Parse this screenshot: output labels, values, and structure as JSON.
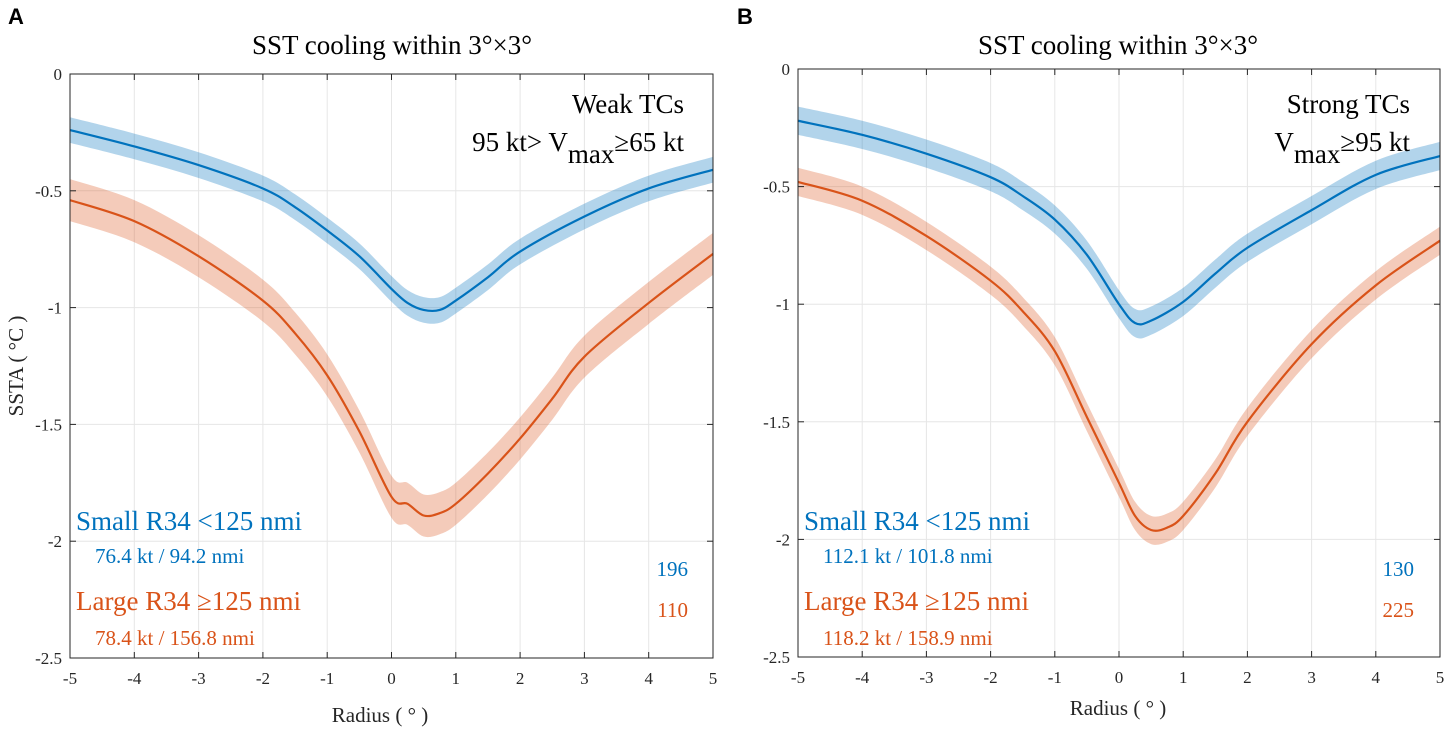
{
  "chart_data": [
    {
      "type": "line",
      "panel_label": "A",
      "title": "SST cooling within 3°×3°",
      "xlabel": "Radius ( ° )",
      "ylabel": "SSTA ( °C )",
      "xlim": [
        -5,
        5
      ],
      "ylim": [
        -2.5,
        0
      ],
      "xticks": [
        "-5",
        "-4",
        "-3",
        "-2",
        "-1",
        "0",
        "1",
        "2",
        "3",
        "4",
        "5"
      ],
      "yticks": [
        "0",
        "-0.5",
        "-1",
        "-1.5",
        "-2",
        "-2.5"
      ],
      "grid": true,
      "annotation_title": "Weak TCs",
      "annotation_cond_prefix": "95 kt> V",
      "annotation_cond_sub": "max",
      "annotation_cond_suffix": "≥65 kt",
      "series": [
        {
          "name": "Small R34 <125 nmi",
          "stats": "76.4 kt / 94.2 nmi",
          "count": "196",
          "color": "#0072BD",
          "x": [
            -5,
            -4,
            -3,
            -2,
            -1.5,
            -1,
            -0.5,
            0,
            0.25,
            0.5,
            0.75,
            1,
            1.5,
            2,
            3,
            4,
            5
          ],
          "y": [
            -0.24,
            -0.31,
            -0.39,
            -0.49,
            -0.57,
            -0.67,
            -0.78,
            -0.92,
            -0.98,
            -1.01,
            -1.01,
            -0.97,
            -0.87,
            -0.76,
            -0.61,
            -0.49,
            -0.41
          ],
          "band": 0.055
        },
        {
          "name": "Large R34  ≥125 nmi",
          "stats": "78.4 kt / 156.8 nmi",
          "count": "110",
          "color": "#D95319",
          "x": [
            -5,
            -4,
            -3,
            -2,
            -1.5,
            -1,
            -0.5,
            0,
            0.25,
            0.5,
            0.75,
            1,
            1.5,
            2,
            2.5,
            3,
            4,
            5
          ],
          "y": [
            -0.54,
            -0.63,
            -0.78,
            -0.97,
            -1.11,
            -1.29,
            -1.53,
            -1.81,
            -1.84,
            -1.89,
            -1.88,
            -1.84,
            -1.71,
            -1.56,
            -1.39,
            -1.21,
            -0.98,
            -0.77
          ],
          "band": 0.09
        }
      ]
    },
    {
      "type": "line",
      "panel_label": "B",
      "title": "SST cooling within 3°×3°",
      "xlabel": "Radius ( ° )",
      "ylabel": "",
      "xlim": [
        -5,
        5
      ],
      "ylim": [
        -2.5,
        0
      ],
      "xticks": [
        "-5",
        "-4",
        "-3",
        "-2",
        "-1",
        "0",
        "1",
        "2",
        "3",
        "4",
        "5"
      ],
      "yticks": [
        "0",
        "-0.5",
        "-1",
        "-1.5",
        "-2",
        "-2.5"
      ],
      "grid": true,
      "annotation_title": "Strong TCs",
      "annotation_cond_prefix": "V",
      "annotation_cond_sub": "max",
      "annotation_cond_suffix": "≥95 kt",
      "series": [
        {
          "name": "Small R34 <125 nmi",
          "stats": "112.1 kt / 101.8 nmi",
          "count": "130",
          "color": "#0072BD",
          "x": [
            -5,
            -4,
            -3,
            -2,
            -1.5,
            -1,
            -0.5,
            0,
            0.25,
            0.5,
            1,
            1.5,
            2,
            3,
            4,
            5
          ],
          "y": [
            -0.22,
            -0.28,
            -0.36,
            -0.46,
            -0.54,
            -0.64,
            -0.79,
            -1.0,
            -1.08,
            -1.07,
            -0.99,
            -0.87,
            -0.76,
            -0.6,
            -0.45,
            -0.37
          ],
          "band": 0.06
        },
        {
          "name": "Large R34  ≥125 nmi",
          "stats": "118.2 kt / 158.9 nmi",
          "count": "225",
          "color": "#D95319",
          "x": [
            -5,
            -4,
            -3,
            -2,
            -1.5,
            -1,
            -0.5,
            0,
            0.25,
            0.5,
            0.75,
            1,
            1.5,
            2,
            3,
            4,
            5
          ],
          "y": [
            -0.48,
            -0.56,
            -0.71,
            -0.9,
            -1.03,
            -1.2,
            -1.48,
            -1.76,
            -1.9,
            -1.96,
            -1.95,
            -1.9,
            -1.72,
            -1.5,
            -1.17,
            -0.92,
            -0.73
          ],
          "band": 0.06
        }
      ]
    }
  ]
}
